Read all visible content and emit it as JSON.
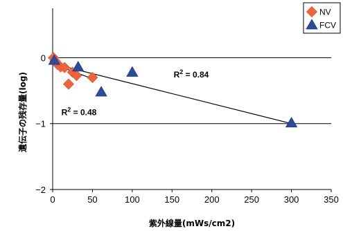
{
  "chart_data": {
    "type": "scatter",
    "title": "",
    "xlabel": "紫外線量(mWs/cm2)",
    "ylabel": "遺伝子の残存量(log)",
    "xlim": [
      0,
      350
    ],
    "ylim": [
      -2,
      0.75
    ],
    "x_ticks": [
      0,
      50,
      100,
      150,
      200,
      250,
      300,
      350
    ],
    "y_ticks": [
      0,
      -1,
      -2
    ],
    "y_tick_labels": [
      "0",
      "−1",
      "−2"
    ],
    "gridlines_y": [
      0,
      -1
    ],
    "legend": "top-right",
    "series": [
      {
        "name": "NV",
        "marker": "diamond",
        "color": "#f0643c",
        "points": [
          {
            "x": 1,
            "y": 0
          },
          {
            "x": 3,
            "y": -0.05
          },
          {
            "x": 6,
            "y": -0.1
          },
          {
            "x": 10,
            "y": -0.14
          },
          {
            "x": 15,
            "y": -0.15
          },
          {
            "x": 20,
            "y": -0.4
          },
          {
            "x": 25,
            "y": -0.22
          },
          {
            "x": 30,
            "y": -0.27
          },
          {
            "x": 50,
            "y": -0.3
          }
        ]
      },
      {
        "name": "FCV",
        "marker": "triangle",
        "color": "#2b4b9b",
        "points": [
          {
            "x": 2,
            "y": -0.04
          },
          {
            "x": 32,
            "y": -0.14
          },
          {
            "x": 61,
            "y": -0.52
          },
          {
            "x": 100,
            "y": -0.22
          },
          {
            "x": 300,
            "y": -0.99
          }
        ]
      }
    ],
    "trendlines": [
      {
        "series": "NV",
        "x": [
          0,
          50
        ],
        "y": [
          -0.09,
          -0.32
        ]
      },
      {
        "series": "FCV",
        "x": [
          0,
          300
        ],
        "y": [
          -0.09,
          -1.0
        ]
      }
    ],
    "annotations": {
      "r2_fcv": {
        "label": "R",
        "sup": "2",
        "value": " = 0.84",
        "x": 152,
        "y": -0.3
      },
      "r2_nv": {
        "label": "R",
        "sup": "2",
        "value": " = 0.48",
        "x": 11,
        "y": -0.87
      }
    }
  }
}
